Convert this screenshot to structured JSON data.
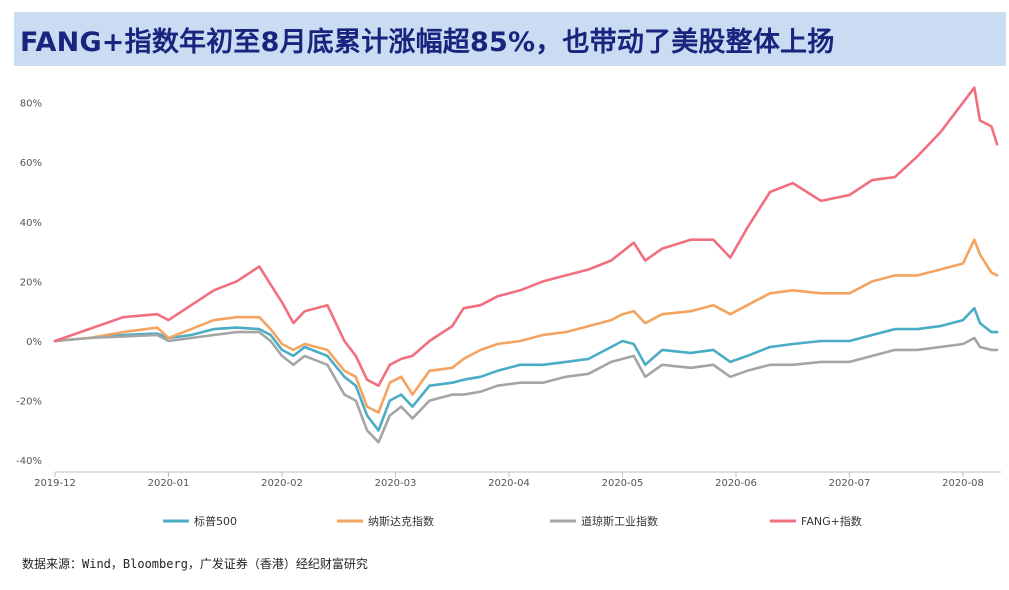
{
  "title": "FANG+指数年初至8月底累计涨幅超85%，也带动了美股整体上扬",
  "source": "数据来源：Wind，Bloomberg，广发证券（香港）经纪财富研究",
  "chart_data": {
    "type": "line",
    "title": "FANG+指数年初至8月底累计涨幅超85%，也带动了美股整体上扬",
    "xlabel": "",
    "ylabel": "",
    "ylim": [
      -40,
      90
    ],
    "yticks": [
      -40,
      -20,
      0,
      20,
      40,
      60,
      80
    ],
    "ytick_labels": [
      "-40%",
      "-20%",
      "0%",
      "20%",
      "40%",
      "60%",
      "80%"
    ],
    "xlim": [
      0,
      8.3
    ],
    "xticks": [
      0,
      1,
      2,
      3,
      4,
      5,
      6,
      7,
      8
    ],
    "xtick_labels": [
      "2019-12",
      "2020-01",
      "2020-02",
      "2020-03",
      "2020-04",
      "2020-05",
      "2020-06",
      "2020-07",
      "2020-08"
    ],
    "grid": false,
    "legend_position": "bottom",
    "series": [
      {
        "name": "标普500",
        "color": "#4bacc6",
        "points": [
          [
            0,
            0
          ],
          [
            0.3,
            1
          ],
          [
            0.6,
            2
          ],
          [
            0.9,
            2.5
          ],
          [
            1.0,
            1
          ],
          [
            1.2,
            2
          ],
          [
            1.4,
            4
          ],
          [
            1.6,
            4.5
          ],
          [
            1.8,
            4
          ],
          [
            1.9,
            2
          ],
          [
            2.0,
            -3
          ],
          [
            2.1,
            -5
          ],
          [
            2.2,
            -2
          ],
          [
            2.4,
            -5
          ],
          [
            2.55,
            -12
          ],
          [
            2.65,
            -15
          ],
          [
            2.75,
            -25
          ],
          [
            2.85,
            -30
          ],
          [
            2.95,
            -20
          ],
          [
            3.05,
            -18
          ],
          [
            3.15,
            -22
          ],
          [
            3.3,
            -15
          ],
          [
            3.5,
            -14
          ],
          [
            3.6,
            -13
          ],
          [
            3.75,
            -12
          ],
          [
            3.9,
            -10
          ],
          [
            4.1,
            -8
          ],
          [
            4.3,
            -8
          ],
          [
            4.5,
            -7
          ],
          [
            4.7,
            -6
          ],
          [
            4.9,
            -2
          ],
          [
            5.0,
            0
          ],
          [
            5.1,
            -1
          ],
          [
            5.2,
            -8
          ],
          [
            5.35,
            -3
          ],
          [
            5.6,
            -4
          ],
          [
            5.8,
            -3
          ],
          [
            5.95,
            -7
          ],
          [
            6.1,
            -5
          ],
          [
            6.3,
            -2
          ],
          [
            6.5,
            -1
          ],
          [
            6.75,
            0
          ],
          [
            7.0,
            0
          ],
          [
            7.2,
            2
          ],
          [
            7.4,
            4
          ],
          [
            7.6,
            4
          ],
          [
            7.8,
            5
          ],
          [
            8.0,
            7
          ],
          [
            8.1,
            11
          ],
          [
            8.15,
            6
          ],
          [
            8.25,
            3
          ],
          [
            8.3,
            3
          ]
        ]
      },
      {
        "name": "纳斯达克指数",
        "color": "#f4a460",
        "points": [
          [
            0,
            0
          ],
          [
            0.3,
            1
          ],
          [
            0.6,
            3
          ],
          [
            0.9,
            4.5
          ],
          [
            1.0,
            1
          ],
          [
            1.2,
            4
          ],
          [
            1.4,
            7
          ],
          [
            1.6,
            8
          ],
          [
            1.8,
            8
          ],
          [
            1.9,
            4
          ],
          [
            2.0,
            -1
          ],
          [
            2.1,
            -3
          ],
          [
            2.2,
            -1
          ],
          [
            2.4,
            -3
          ],
          [
            2.55,
            -10
          ],
          [
            2.65,
            -12
          ],
          [
            2.75,
            -22
          ],
          [
            2.85,
            -24
          ],
          [
            2.95,
            -14
          ],
          [
            3.05,
            -12
          ],
          [
            3.15,
            -18
          ],
          [
            3.3,
            -10
          ],
          [
            3.5,
            -9
          ],
          [
            3.6,
            -6
          ],
          [
            3.75,
            -3
          ],
          [
            3.9,
            -1
          ],
          [
            4.1,
            0
          ],
          [
            4.3,
            2
          ],
          [
            4.5,
            3
          ],
          [
            4.7,
            5
          ],
          [
            4.9,
            7
          ],
          [
            5.0,
            9
          ],
          [
            5.1,
            10
          ],
          [
            5.2,
            6
          ],
          [
            5.35,
            9
          ],
          [
            5.6,
            10
          ],
          [
            5.8,
            12
          ],
          [
            5.95,
            9
          ],
          [
            6.1,
            12
          ],
          [
            6.3,
            16
          ],
          [
            6.5,
            17
          ],
          [
            6.75,
            16
          ],
          [
            7.0,
            16
          ],
          [
            7.2,
            20
          ],
          [
            7.4,
            22
          ],
          [
            7.6,
            22
          ],
          [
            7.8,
            24
          ],
          [
            8.0,
            26
          ],
          [
            8.1,
            34
          ],
          [
            8.15,
            29
          ],
          [
            8.25,
            23
          ],
          [
            8.3,
            22
          ]
        ]
      },
      {
        "name": "道琼斯工业指数",
        "color": "#a5a5a5",
        "points": [
          [
            0,
            0
          ],
          [
            0.3,
            1
          ],
          [
            0.6,
            1.5
          ],
          [
            0.9,
            2
          ],
          [
            1.0,
            0
          ],
          [
            1.2,
            1
          ],
          [
            1.4,
            2
          ],
          [
            1.6,
            3
          ],
          [
            1.8,
            3
          ],
          [
            1.9,
            0
          ],
          [
            2.0,
            -5
          ],
          [
            2.1,
            -8
          ],
          [
            2.2,
            -5
          ],
          [
            2.4,
            -8
          ],
          [
            2.55,
            -18
          ],
          [
            2.65,
            -20
          ],
          [
            2.75,
            -30
          ],
          [
            2.85,
            -34
          ],
          [
            2.95,
            -25
          ],
          [
            3.05,
            -22
          ],
          [
            3.15,
            -26
          ],
          [
            3.3,
            -20
          ],
          [
            3.5,
            -18
          ],
          [
            3.6,
            -18
          ],
          [
            3.75,
            -17
          ],
          [
            3.9,
            -15
          ],
          [
            4.1,
            -14
          ],
          [
            4.3,
            -14
          ],
          [
            4.5,
            -12
          ],
          [
            4.7,
            -11
          ],
          [
            4.9,
            -7
          ],
          [
            5.0,
            -6
          ],
          [
            5.1,
            -5
          ],
          [
            5.2,
            -12
          ],
          [
            5.35,
            -8
          ],
          [
            5.6,
            -9
          ],
          [
            5.8,
            -8
          ],
          [
            5.95,
            -12
          ],
          [
            6.1,
            -10
          ],
          [
            6.3,
            -8
          ],
          [
            6.5,
            -8
          ],
          [
            6.75,
            -7
          ],
          [
            7.0,
            -7
          ],
          [
            7.2,
            -5
          ],
          [
            7.4,
            -3
          ],
          [
            7.6,
            -3
          ],
          [
            7.8,
            -2
          ],
          [
            8.0,
            -1
          ],
          [
            8.1,
            1
          ],
          [
            8.15,
            -2
          ],
          [
            8.25,
            -3
          ],
          [
            8.3,
            -3
          ]
        ]
      },
      {
        "name": "FANG+指数",
        "color": "#f07080",
        "points": [
          [
            0,
            0
          ],
          [
            0.3,
            4
          ],
          [
            0.6,
            8
          ],
          [
            0.9,
            9
          ],
          [
            1.0,
            7
          ],
          [
            1.2,
            12
          ],
          [
            1.4,
            17
          ],
          [
            1.6,
            20
          ],
          [
            1.8,
            25
          ],
          [
            1.9,
            19
          ],
          [
            2.0,
            13
          ],
          [
            2.1,
            6
          ],
          [
            2.2,
            10
          ],
          [
            2.4,
            12
          ],
          [
            2.55,
            0
          ],
          [
            2.65,
            -5
          ],
          [
            2.75,
            -13
          ],
          [
            2.85,
            -15
          ],
          [
            2.95,
            -8
          ],
          [
            3.05,
            -6
          ],
          [
            3.15,
            -5
          ],
          [
            3.3,
            0
          ],
          [
            3.5,
            5
          ],
          [
            3.6,
            11
          ],
          [
            3.75,
            12
          ],
          [
            3.9,
            15
          ],
          [
            4.1,
            17
          ],
          [
            4.3,
            20
          ],
          [
            4.5,
            22
          ],
          [
            4.7,
            24
          ],
          [
            4.9,
            27
          ],
          [
            5.0,
            30
          ],
          [
            5.1,
            33
          ],
          [
            5.2,
            27
          ],
          [
            5.35,
            31
          ],
          [
            5.6,
            34
          ],
          [
            5.8,
            34
          ],
          [
            5.95,
            28
          ],
          [
            6.1,
            38
          ],
          [
            6.3,
            50
          ],
          [
            6.5,
            53
          ],
          [
            6.75,
            47
          ],
          [
            7.0,
            49
          ],
          [
            7.2,
            54
          ],
          [
            7.4,
            55
          ],
          [
            7.6,
            62
          ],
          [
            7.8,
            70
          ],
          [
            8.0,
            80
          ],
          [
            8.1,
            85
          ],
          [
            8.15,
            74
          ],
          [
            8.25,
            72
          ],
          [
            8.3,
            66
          ]
        ]
      }
    ]
  }
}
